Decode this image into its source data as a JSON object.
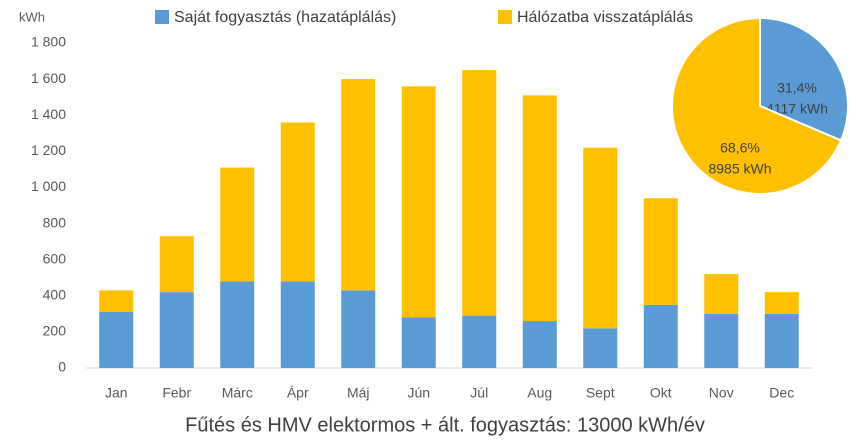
{
  "chart_data": [
    {
      "type": "bar",
      "title": "Fűtés és HMV elektormos + ált. fogyasztás: 13000 kWh/év",
      "y_label": "kWh",
      "categories": [
        "Jan",
        "Febr",
        "Márc",
        "Ápr",
        "Máj",
        "Jún",
        "Júl",
        "Aug",
        "Sept",
        "Okt",
        "Nov",
        "Dec"
      ],
      "series": [
        {
          "name": "Saját fogyasztás (hazatáplálás)",
          "color": "#5b9bd5",
          "values": [
            310,
            420,
            480,
            480,
            430,
            280,
            290,
            260,
            220,
            350,
            300,
            300
          ]
        },
        {
          "name": "Hálózatba visszatáplálás",
          "color": "#ffc000",
          "values": [
            120,
            310,
            630,
            880,
            1170,
            1280,
            1360,
            1250,
            1000,
            590,
            220,
            120
          ]
        }
      ],
      "stacked": true,
      "ylim": [
        0,
        1800
      ],
      "yticks": [
        0,
        200,
        400,
        600,
        800,
        {
          "value": 1000,
          "label": "1 000"
        },
        {
          "value": 1200,
          "label": "1 200"
        },
        {
          "value": 1400,
          "label": "1 400"
        },
        {
          "value": 1600,
          "label": "1 600"
        },
        {
          "value": 1800,
          "label": "1 800"
        }
      ],
      "grid": false,
      "legend": "top"
    },
    {
      "type": "pie",
      "values": [
        31.4,
        68.6
      ],
      "value_labels": [
        "31,4%",
        "68,6%"
      ],
      "energy_labels": [
        "4117 kWh",
        "8985 kWh"
      ],
      "colors": [
        "#5b9bd5",
        "#ffc000"
      ]
    }
  ]
}
